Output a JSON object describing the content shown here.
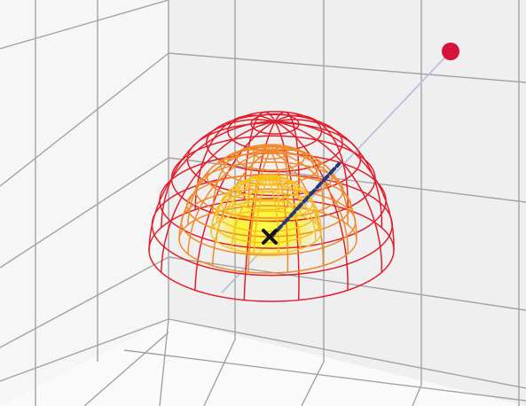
{
  "scene": {
    "background_color": "#f4f4f4",
    "wall_tint_back": "#eeeeee",
    "wall_tint_left": "#f7f7f7",
    "wall_tint_floor": "#f9f9f9",
    "grid_color": "#9a9a9a",
    "edge_color": "#7f7f7f"
  },
  "objects": {
    "source_point": {
      "color": "#d7153a",
      "icon": "red-dot"
    },
    "origin_marker": {
      "color": "#111111",
      "icon": "x-mark"
    },
    "ray_line": {
      "color": "#b9c1dc"
    },
    "direction_arrow": {
      "color": "#233a7a",
      "style": "dashed"
    },
    "field_shells": [
      {
        "name": "outer",
        "color": "#e01e2c"
      },
      {
        "name": "middle",
        "color": "#f08a2a"
      },
      {
        "name": "inner",
        "color": "#f6c21f"
      }
    ],
    "core_glow": {
      "color": "#fff200"
    }
  }
}
